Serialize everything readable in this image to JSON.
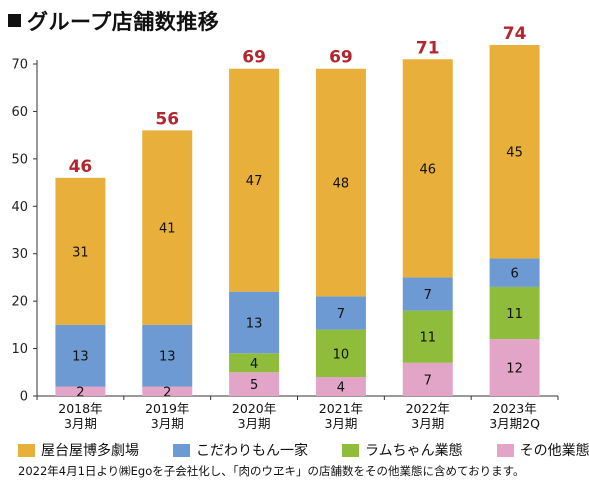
{
  "title": "グループ店舗数推移",
  "chart_data": {
    "type": "bar",
    "stacked": true,
    "categories": [
      [
        "2018年",
        "3月期"
      ],
      [
        "2019年",
        "3月期"
      ],
      [
        "2020年",
        "3月期"
      ],
      [
        "2021年",
        "3月期"
      ],
      [
        "2022年",
        "3月期"
      ],
      [
        "2023年",
        "3月期2Q"
      ]
    ],
    "series": [
      {
        "name": "その他業態",
        "color": "#e3a5c7",
        "values": [
          2,
          2,
          5,
          4,
          7,
          12
        ]
      },
      {
        "name": "ラムちゃん業態",
        "color": "#8fbc3a",
        "values": [
          0,
          0,
          4,
          10,
          11,
          11
        ]
      },
      {
        "name": "こだわりもん一家",
        "color": "#6e9ad3",
        "values": [
          13,
          13,
          13,
          7,
          7,
          6
        ]
      },
      {
        "name": "屋台屋博多劇場",
        "color": "#e8b03a",
        "values": [
          31,
          41,
          47,
          48,
          46,
          45
        ]
      }
    ],
    "totals": [
      46,
      56,
      69,
      69,
      71,
      74
    ],
    "total_color": "#b3262e",
    "ylim": [
      0,
      70
    ],
    "yticks": [
      0,
      10,
      20,
      30,
      40,
      50,
      60,
      70
    ],
    "grid": false,
    "legend_position": "bottom",
    "legend_order": [
      "屋台屋博多劇場",
      "こだわりもん一家",
      "ラムちゃん業態",
      "その他業態"
    ]
  },
  "footnote": "2022年4月1日より㈱Egoを子会社化し、「肉のウヱキ」の店舗数をその他業態に含めております。"
}
